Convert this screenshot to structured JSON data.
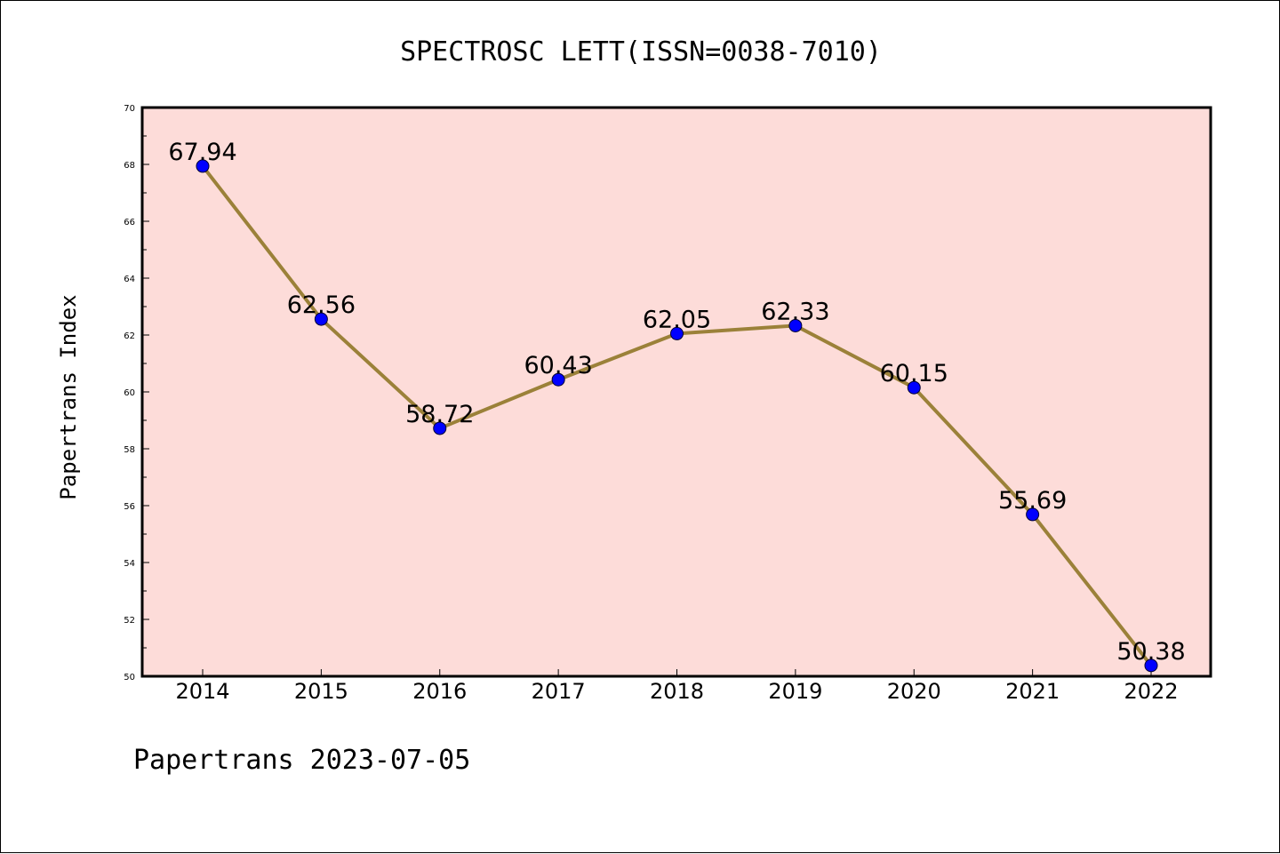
{
  "chart_data": {
    "type": "line",
    "title": "SPECTROSC LETT(ISSN=0038-7010)",
    "xlabel": "",
    "ylabel": "Papertrans Index",
    "categories": [
      "2014",
      "2015",
      "2016",
      "2017",
      "2018",
      "2019",
      "2020",
      "2021",
      "2022"
    ],
    "series": [
      {
        "values": [
          67.94,
          62.56,
          58.72,
          60.43,
          62.05,
          62.33,
          60.15,
          55.69,
          50.38
        ],
        "data_labels": [
          "67.94",
          "62.56",
          "58.72",
          "60.43",
          "62.05",
          "62.33",
          "60.15",
          "55.69",
          "50.38"
        ]
      }
    ],
    "ylim": [
      50,
      70
    ],
    "y_ticks": [
      "50",
      "52",
      "54",
      "56",
      "58",
      "60",
      "62",
      "64",
      "66",
      "68",
      "70"
    ],
    "grid": false,
    "legend": "none",
    "colors": {
      "plot_background": "#fddcd9",
      "line": "#9b8139",
      "marker": "#0000ff",
      "axes": "#000000"
    }
  },
  "footer": {
    "source": "Papertrans 2023-07-05"
  }
}
